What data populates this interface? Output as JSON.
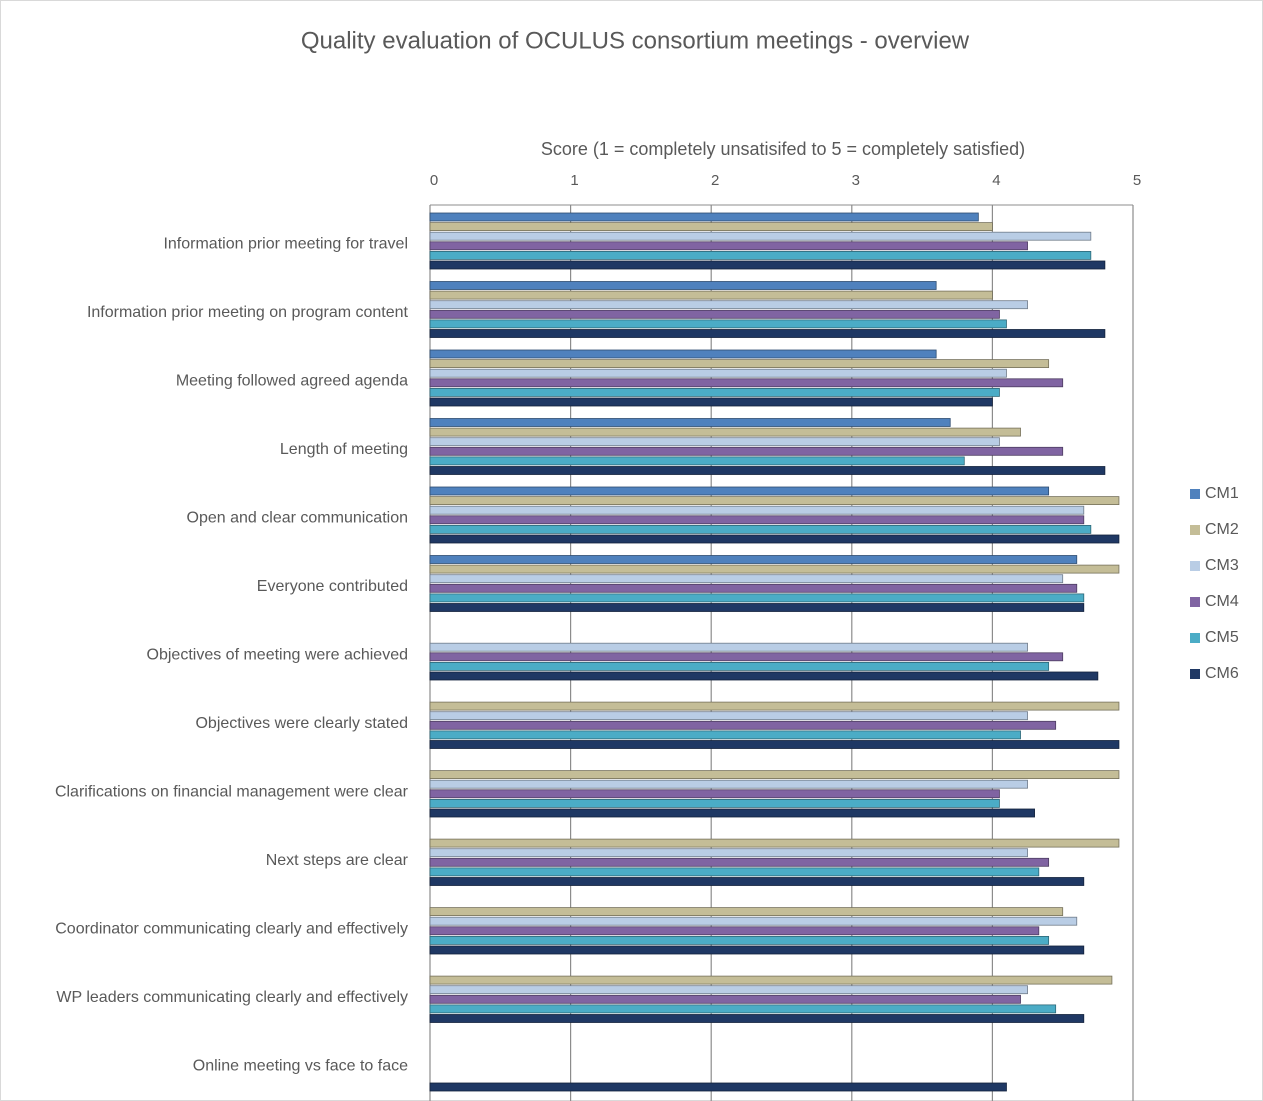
{
  "chart_data": {
    "type": "bar",
    "orientation": "horizontal",
    "title": "Quality evaluation of OCULUS consortium meetings - overview",
    "x_label": "Score (1 = completely unsatisifed to 5 = completely satisfied)",
    "categories": [
      "Information prior meeting for travel",
      "Information prior meeting on program content",
      "Meeting followed agreed agenda",
      "Length of meeting",
      "Open and clear communication",
      "Everyone contributed",
      "Objectives of meeting were achieved",
      "Objectives were clearly stated",
      "Clarifications on financial management were clear",
      "Next steps are clear",
      "Coordinator communicating clearly and effectively",
      "WP leaders communicating clearly and effectively",
      "Online meeting vs face to face"
    ],
    "series": [
      {
        "name": "CM1",
        "color": "#4f81bd",
        "values": [
          3.9,
          3.6,
          3.6,
          3.7,
          4.4,
          4.6,
          null,
          null,
          null,
          null,
          null,
          null,
          null
        ]
      },
      {
        "name": "CM2",
        "color": "#c4bd97",
        "values": [
          4.0,
          4.0,
          4.4,
          4.2,
          4.9,
          4.9,
          null,
          4.9,
          4.9,
          4.9,
          4.5,
          4.85,
          null
        ]
      },
      {
        "name": "CM3",
        "color": "#b9cde5",
        "values": [
          4.7,
          4.25,
          4.1,
          4.05,
          4.65,
          4.5,
          4.25,
          4.25,
          4.25,
          4.25,
          4.6,
          4.25,
          null
        ]
      },
      {
        "name": "CM4",
        "color": "#8064a2",
        "values": [
          4.25,
          4.05,
          4.5,
          4.5,
          4.65,
          4.6,
          4.5,
          4.45,
          4.05,
          4.4,
          4.33,
          4.2,
          null
        ]
      },
      {
        "name": "CM5",
        "color": "#4bacc6",
        "values": [
          4.7,
          4.1,
          4.05,
          3.8,
          4.7,
          4.65,
          4.4,
          4.2,
          4.05,
          4.33,
          4.4,
          4.45,
          null
        ]
      },
      {
        "name": "CM6",
        "color": "#1f3864",
        "values": [
          4.8,
          4.8,
          4.0,
          4.8,
          4.9,
          4.65,
          4.75,
          4.9,
          4.3,
          4.65,
          4.65,
          4.65,
          4.1
        ]
      }
    ],
    "xlim": [
      0,
      5
    ],
    "xticks": [
      0,
      1,
      2,
      3,
      4,
      5
    ],
    "grid": true,
    "legend": "right"
  }
}
